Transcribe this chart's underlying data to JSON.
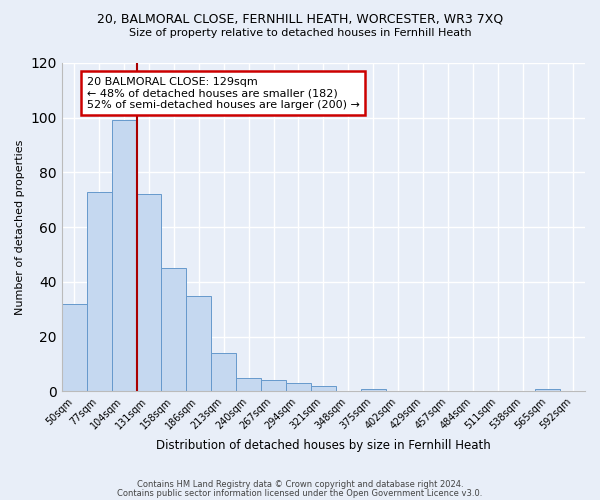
{
  "title_line1": "20, BALMORAL CLOSE, FERNHILL HEATH, WORCESTER, WR3 7XQ",
  "title_line2": "Size of property relative to detached houses in Fernhill Heath",
  "xlabel": "Distribution of detached houses by size in Fernhill Heath",
  "ylabel": "Number of detached properties",
  "bin_labels": [
    "50sqm",
    "77sqm",
    "104sqm",
    "131sqm",
    "158sqm",
    "186sqm",
    "213sqm",
    "240sqm",
    "267sqm",
    "294sqm",
    "321sqm",
    "348sqm",
    "375sqm",
    "402sqm",
    "429sqm",
    "457sqm",
    "484sqm",
    "511sqm",
    "538sqm",
    "565sqm",
    "592sqm"
  ],
  "bar_values": [
    32,
    73,
    99,
    72,
    45,
    35,
    14,
    5,
    4,
    3,
    2,
    0,
    1,
    0,
    0,
    0,
    0,
    0,
    0,
    1,
    0
  ],
  "bar_color": "#c5d8f0",
  "bar_edge_color": "#6699cc",
  "vline_color": "#aa0000",
  "ylim": [
    0,
    120
  ],
  "yticks": [
    0,
    20,
    40,
    60,
    80,
    100,
    120
  ],
  "annotation_line1": "20 BALMORAL CLOSE: 129sqm",
  "annotation_line2": "← 48% of detached houses are smaller (182)",
  "annotation_line3": "52% of semi-detached houses are larger (200) →",
  "annotation_box_color": "#ffffff",
  "annotation_box_edge": "#cc0000",
  "footer_line1": "Contains HM Land Registry data © Crown copyright and database right 2024.",
  "footer_line2": "Contains public sector information licensed under the Open Government Licence v3.0.",
  "background_color": "#e8eef8",
  "grid_color": "#ffffff",
  "spine_color": "#bbbbbb"
}
